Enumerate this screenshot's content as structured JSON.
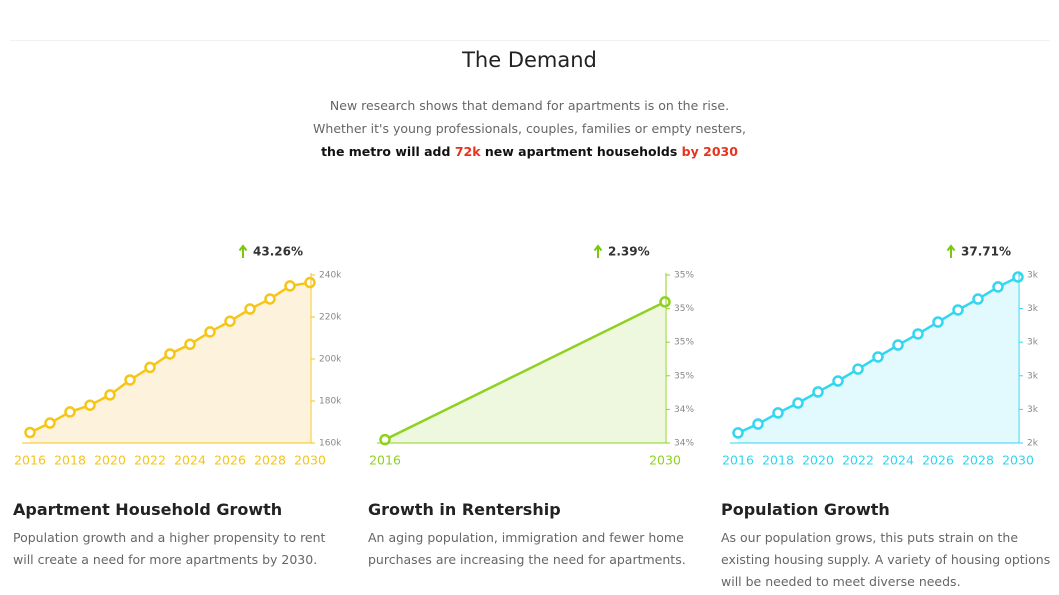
{
  "header": {
    "title": "The Demand",
    "intro": [
      "New research shows that demand for apartments is on the rise.",
      "Whether it's young professionals, couples, families or empty nesters,"
    ],
    "highlight": [
      "the metro will add ",
      "72k",
      " new apartment households ",
      "by 2030"
    ]
  },
  "chart_data": [
    {
      "type": "line",
      "title": "Apartment Household Growth",
      "description": "Population growth and a higher propensity to rent will create a need for more apartments by 2030.",
      "annotation": "43.26%",
      "color": "#f5c518",
      "area_color": "#fdf3dc",
      "categories": [
        "2016",
        null,
        "2018",
        null,
        "2020",
        null,
        "2022",
        null,
        "2024",
        null,
        "2026",
        null,
        "2028",
        null,
        "2030"
      ],
      "values": [
        165000,
        169500,
        174800,
        178000,
        182900,
        190000,
        196000,
        202400,
        207000,
        212900,
        218000,
        223800,
        228600,
        234800,
        236400
      ],
      "ylim": [
        160000,
        240000
      ],
      "yticks": [
        {
          "value": 160000,
          "label": "160k"
        },
        {
          "value": 180000,
          "label": "180k"
        },
        {
          "value": 200000,
          "label": "200k"
        },
        {
          "value": 220000,
          "label": "220k"
        },
        {
          "value": 240000,
          "label": "240k"
        }
      ]
    },
    {
      "type": "line",
      "title": "Growth in Rentership",
      "description": "An aging population, immigration and fewer home purchases are increasing the need for apartments.",
      "annotation": "2.39%",
      "color": "#8fd11f",
      "area_color": "#eef8de",
      "categories": [
        "2016",
        "2030"
      ],
      "values": [
        34.22,
        35.04
      ],
      "ylim": [
        34.2,
        35.2
      ],
      "yticks": [
        {
          "value": 34.2,
          "label": "34%"
        },
        {
          "value": 34.4,
          "label": "34%"
        },
        {
          "value": 34.6,
          "label": "35%"
        },
        {
          "value": 34.8,
          "label": "35%"
        },
        {
          "value": 35.0,
          "label": "35%"
        },
        {
          "value": 35.2,
          "label": "35%"
        }
      ]
    },
    {
      "type": "line",
      "title": "Population Growth",
      "description": "As our population grows, this puts strain on the existing housing supply. A variety of housing options will be needed to meet diverse needs.",
      "annotation": "37.71%",
      "color": "#33d6f0",
      "area_color": "#e2fafd",
      "categories": [
        "2016",
        null,
        "2018",
        null,
        "2020",
        null,
        "2022",
        null,
        "2024",
        null,
        "2026",
        null,
        "2028",
        null,
        "2030"
      ],
      "values": [
        2460,
        2513,
        2579,
        2638,
        2704,
        2769,
        2840,
        2912,
        2983,
        3049,
        3120,
        3192,
        3257,
        3329,
        3388
      ],
      "ylim": [
        2400,
        3400
      ],
      "yticks": [
        {
          "value": 2400,
          "label": "2k"
        },
        {
          "value": 2600,
          "label": "3k"
        },
        {
          "value": 2800,
          "label": "3k"
        },
        {
          "value": 3000,
          "label": "3k"
        },
        {
          "value": 3200,
          "label": "3k"
        },
        {
          "value": 3400,
          "label": "3k"
        }
      ]
    }
  ]
}
